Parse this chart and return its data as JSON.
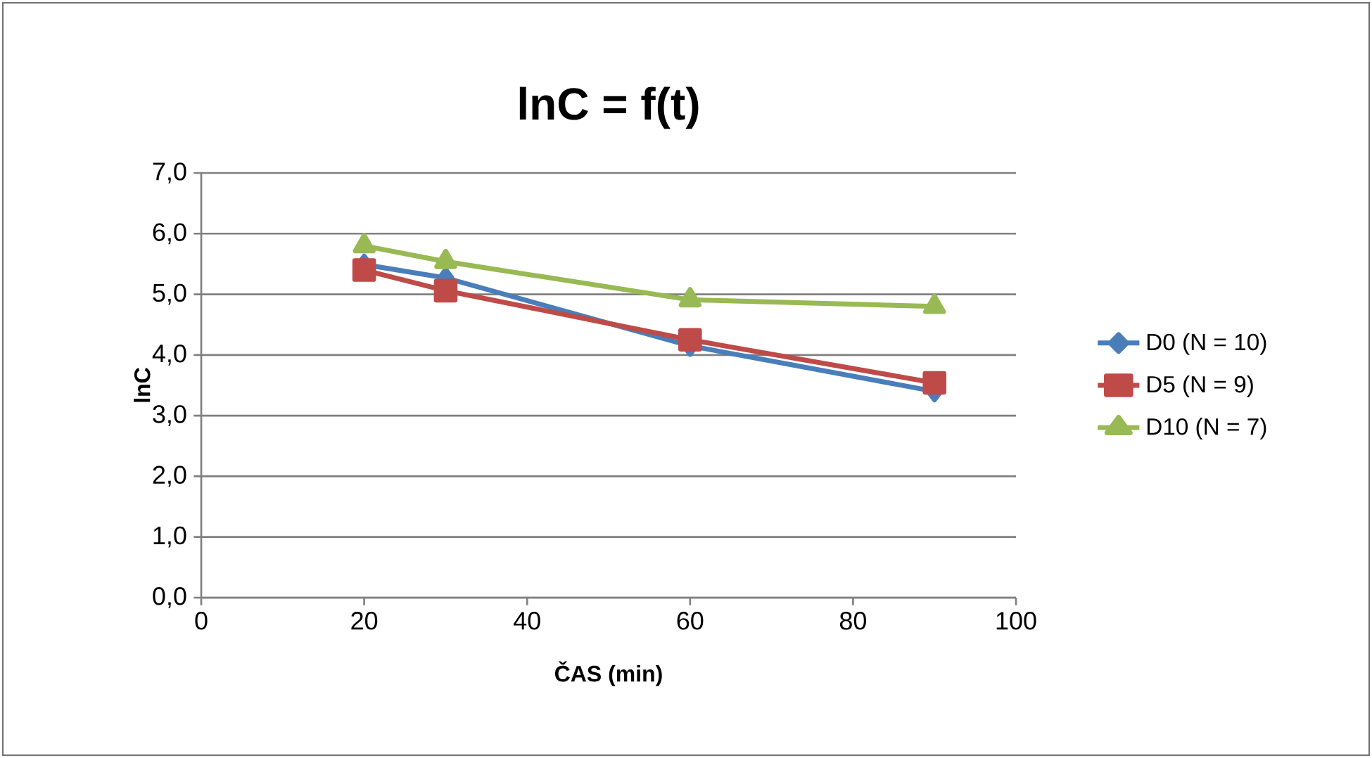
{
  "chart_data": {
    "type": "line",
    "title": "lnC = f(t)",
    "xlabel": "ČAS (min)",
    "ylabel": "lnC",
    "xlim": [
      0,
      100
    ],
    "xticks": [
      0,
      20,
      40,
      60,
      80,
      100
    ],
    "ylim": [
      0,
      7
    ],
    "yticks": [
      {
        "value": 0,
        "label": "0,0"
      },
      {
        "value": 1,
        "label": "1,0"
      },
      {
        "value": 2,
        "label": "2,0"
      },
      {
        "value": 3,
        "label": "3,0"
      },
      {
        "value": 4,
        "label": "4,0"
      },
      {
        "value": 5,
        "label": "5,0"
      },
      {
        "value": 6,
        "label": "6,0"
      },
      {
        "value": 7,
        "label": "7,0"
      }
    ],
    "grid": "y",
    "legend": "right",
    "series": [
      {
        "name": "D0 (N = 10)",
        "color": "#4a7ebb",
        "marker": "diamond",
        "x": [
          20,
          30,
          60,
          90
        ],
        "values": [
          5.49,
          5.27,
          4.15,
          3.4
        ]
      },
      {
        "name": "D5 (N = 9)",
        "color": "#be4b48",
        "marker": "square",
        "x": [
          20,
          30,
          60,
          90
        ],
        "values": [
          5.4,
          5.06,
          4.25,
          3.54
        ]
      },
      {
        "name": "D10 (N = 7)",
        "color": "#98b954",
        "marker": "triangle",
        "x": [
          20,
          30,
          60,
          90
        ],
        "values": [
          5.8,
          5.54,
          4.91,
          4.8
        ]
      }
    ]
  }
}
